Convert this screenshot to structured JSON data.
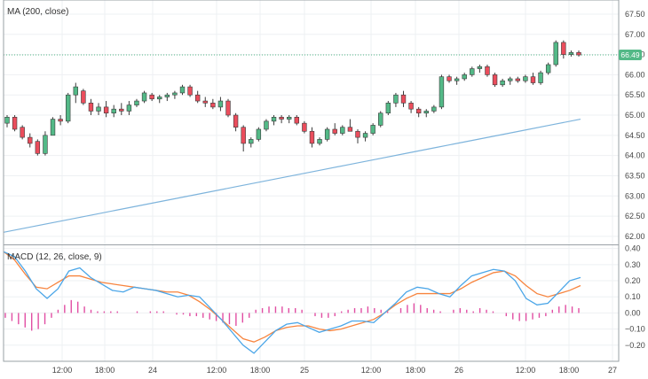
{
  "chart_data": [
    {
      "type": "candlestick",
      "indicator_label": "MA (200, close)",
      "last_price_label": "66.49",
      "ylim": [
        61.8,
        67.85
      ],
      "y_ticks": [
        "62.00",
        "62.50",
        "63.00",
        "63.50",
        "64.00",
        "64.50",
        "65.00",
        "65.50",
        "66.00",
        "66.50",
        "67.00",
        "67.50"
      ],
      "y_tick_values": [
        62.0,
        62.5,
        63.0,
        63.5,
        64.0,
        64.5,
        65.0,
        65.5,
        66.0,
        66.5,
        67.0,
        67.5
      ],
      "grid": true,
      "ohlc": [
        [
          64.8,
          65.0,
          64.7,
          64.95
        ],
        [
          64.95,
          65.0,
          64.6,
          64.65
        ],
        [
          64.7,
          64.75,
          64.4,
          64.45
        ],
        [
          64.45,
          64.55,
          64.2,
          64.3
        ],
        [
          64.35,
          64.4,
          64.0,
          64.05
        ],
        [
          64.05,
          64.6,
          64.0,
          64.5
        ],
        [
          64.5,
          64.95,
          64.5,
          64.9
        ],
        [
          64.9,
          65.0,
          64.75,
          64.85
        ],
        [
          64.85,
          65.55,
          64.8,
          65.5
        ],
        [
          65.5,
          65.8,
          65.3,
          65.7
        ],
        [
          65.6,
          65.65,
          65.25,
          65.3
        ],
        [
          65.3,
          65.4,
          65.0,
          65.1
        ],
        [
          65.1,
          65.3,
          65.0,
          65.2
        ],
        [
          65.2,
          65.35,
          64.95,
          65.05
        ],
        [
          65.05,
          65.25,
          64.95,
          65.15
        ],
        [
          65.15,
          65.3,
          65.0,
          65.1
        ],
        [
          65.1,
          65.35,
          65.0,
          65.25
        ],
        [
          65.25,
          65.4,
          65.2,
          65.35
        ],
        [
          65.35,
          65.6,
          65.3,
          65.55
        ],
        [
          65.5,
          65.55,
          65.35,
          65.4
        ],
        [
          65.4,
          65.5,
          65.3,
          65.45
        ],
        [
          65.45,
          65.55,
          65.35,
          65.5
        ],
        [
          65.5,
          65.6,
          65.4,
          65.55
        ],
        [
          65.55,
          65.75,
          65.5,
          65.7
        ],
        [
          65.7,
          65.75,
          65.45,
          65.5
        ],
        [
          65.5,
          65.6,
          65.3,
          65.35
        ],
        [
          65.35,
          65.45,
          65.2,
          65.3
        ],
        [
          65.3,
          65.4,
          65.15,
          65.2
        ],
        [
          65.2,
          65.45,
          65.1,
          65.35
        ],
        [
          65.35,
          65.4,
          64.95,
          65.0
        ],
        [
          65.0,
          65.05,
          64.6,
          64.7
        ],
        [
          64.7,
          64.75,
          64.1,
          64.3
        ],
        [
          64.3,
          64.45,
          64.2,
          64.4
        ],
        [
          64.4,
          64.7,
          64.35,
          64.65
        ],
        [
          64.65,
          64.9,
          64.6,
          64.85
        ],
        [
          64.85,
          65.0,
          64.75,
          64.95
        ],
        [
          64.95,
          65.0,
          64.8,
          64.9
        ],
        [
          64.9,
          65.0,
          64.8,
          64.95
        ],
        [
          64.95,
          65.0,
          64.75,
          64.8
        ],
        [
          64.8,
          64.85,
          64.55,
          64.6
        ],
        [
          64.6,
          64.7,
          64.2,
          64.3
        ],
        [
          64.3,
          64.45,
          64.25,
          64.4
        ],
        [
          64.4,
          64.7,
          64.35,
          64.65
        ],
        [
          64.65,
          64.8,
          64.5,
          64.55
        ],
        [
          64.55,
          64.75,
          64.5,
          64.7
        ],
        [
          64.7,
          64.9,
          64.65,
          64.6
        ],
        [
          64.6,
          64.65,
          64.3,
          64.45
        ],
        [
          64.45,
          64.6,
          64.35,
          64.55
        ],
        [
          64.55,
          64.8,
          64.5,
          64.75
        ],
        [
          64.75,
          65.1,
          64.7,
          65.05
        ],
        [
          65.05,
          65.35,
          65.0,
          65.3
        ],
        [
          65.3,
          65.55,
          65.2,
          65.5
        ],
        [
          65.5,
          65.6,
          65.2,
          65.3
        ],
        [
          65.3,
          65.35,
          65.05,
          65.15
        ],
        [
          65.15,
          65.2,
          64.95,
          65.05
        ],
        [
          65.05,
          65.15,
          64.95,
          65.1
        ],
        [
          65.1,
          65.25,
          65.05,
          65.2
        ],
        [
          65.2,
          66.0,
          65.15,
          65.95
        ],
        [
          65.95,
          66.0,
          65.8,
          65.85
        ],
        [
          65.85,
          65.95,
          65.75,
          65.9
        ],
        [
          65.9,
          66.05,
          65.85,
          66.0
        ],
        [
          66.0,
          66.2,
          65.95,
          66.15
        ],
        [
          66.15,
          66.25,
          66.05,
          66.2
        ],
        [
          66.2,
          66.25,
          65.95,
          66.0
        ],
        [
          66.0,
          66.05,
          65.7,
          65.75
        ],
        [
          65.75,
          65.9,
          65.7,
          65.85
        ],
        [
          65.85,
          65.95,
          65.75,
          65.9
        ],
        [
          65.9,
          65.95,
          65.8,
          65.85
        ],
        [
          65.85,
          66.0,
          65.8,
          65.95
        ],
        [
          65.95,
          66.05,
          65.75,
          65.8
        ],
        [
          65.8,
          66.1,
          65.75,
          66.05
        ],
        [
          66.05,
          66.3,
          66.0,
          66.25
        ],
        [
          66.25,
          66.85,
          66.2,
          66.8
        ],
        [
          66.8,
          66.85,
          66.4,
          66.5
        ],
        [
          66.5,
          66.6,
          66.45,
          66.55
        ],
        [
          66.55,
          66.6,
          66.45,
          66.49
        ]
      ],
      "ma200": [
        62.1,
        62.24,
        62.38,
        62.52,
        62.66,
        62.8,
        62.94,
        63.08,
        63.22,
        63.36,
        63.5,
        63.64,
        63.78,
        63.92,
        64.06,
        64.2,
        64.34,
        64.48,
        64.62,
        64.76,
        64.9
      ],
      "colors": {
        "up": "#53b987",
        "down": "#eb4d5c",
        "ma": "#7eb4dc",
        "last_price_line": "#53b987"
      }
    },
    {
      "type": "macd",
      "indicator_label": "MACD (12, 26, close, 9)",
      "ylim": [
        -0.3,
        0.42
      ],
      "y_ticks": [
        "0.40",
        "0.30",
        "0.20",
        "0.10",
        "0.00",
        "−0.10",
        "−0.20"
      ],
      "y_tick_values": [
        0.4,
        0.3,
        0.2,
        0.1,
        0.0,
        -0.1,
        -0.2
      ],
      "macd": [
        0.38,
        0.35,
        0.26,
        0.15,
        0.09,
        0.15,
        0.26,
        0.28,
        0.22,
        0.18,
        0.14,
        0.13,
        0.16,
        0.15,
        0.14,
        0.12,
        0.1,
        0.11,
        0.1,
        0.03,
        -0.04,
        -0.12,
        -0.2,
        -0.25,
        -0.18,
        -0.11,
        -0.07,
        -0.06,
        -0.09,
        -0.12,
        -0.1,
        -0.08,
        -0.05,
        -0.05,
        -0.06,
        0.0,
        0.06,
        0.13,
        0.16,
        0.15,
        0.12,
        0.1,
        0.17,
        0.23,
        0.25,
        0.27,
        0.26,
        0.2,
        0.09,
        0.05,
        0.06,
        0.13,
        0.2,
        0.22
      ],
      "signal": [
        0.38,
        0.33,
        0.24,
        0.16,
        0.15,
        0.19,
        0.23,
        0.23,
        0.21,
        0.19,
        0.18,
        0.17,
        0.16,
        0.15,
        0.14,
        0.13,
        0.13,
        0.11,
        0.07,
        0.02,
        -0.04,
        -0.1,
        -0.16,
        -0.18,
        -0.15,
        -0.11,
        -0.09,
        -0.08,
        -0.08,
        -0.1,
        -0.11,
        -0.1,
        -0.08,
        -0.06,
        -0.04,
        0.0,
        0.05,
        0.09,
        0.12,
        0.12,
        0.12,
        0.12,
        0.15,
        0.19,
        0.22,
        0.25,
        0.26,
        0.23,
        0.17,
        0.12,
        0.1,
        0.12,
        0.14,
        0.17
      ],
      "histogram": [
        -0.03,
        -0.05,
        -0.07,
        -0.09,
        -0.11,
        -0.1,
        -0.07,
        -0.03,
        0.02,
        0.05,
        0.08,
        0.07,
        0.04,
        0.02,
        0.01,
        0.01,
        0.01,
        0.01,
        0.0,
        0.0,
        0.01,
        0.0,
        0.01,
        0.01,
        0.01,
        0.0,
        -0.01,
        -0.01,
        -0.02,
        -0.02,
        -0.03,
        -0.04,
        -0.05,
        -0.06,
        -0.07,
        -0.08,
        -0.06,
        -0.03,
        0.02,
        0.03,
        0.04,
        0.04,
        0.04,
        0.03,
        0.03,
        0.02,
        0.0,
        -0.02,
        -0.03,
        -0.03,
        -0.02,
        0.01,
        0.02,
        0.03,
        0.03,
        0.04,
        0.03,
        0.02,
        0.01,
        0.0,
        0.03,
        0.05,
        0.06,
        0.05,
        0.03,
        0.02,
        0.01,
        0.0,
        0.02,
        0.03,
        0.02,
        0.01,
        0.03,
        0.02,
        0.01,
        0.0,
        -0.02,
        -0.04,
        -0.05,
        -0.05,
        -0.04,
        -0.03,
        -0.02,
        0.02,
        0.04,
        0.05,
        0.04,
        0.03
      ],
      "colors": {
        "macd": "#4ba6e8",
        "signal": "#f7843e",
        "histogram": "#e14ea3"
      }
    }
  ],
  "x_axis": {
    "labels": [
      "12:00",
      "18:00",
      "24",
      "12:00",
      "18:00",
      "25",
      "12:00",
      "18:00",
      "26",
      "12:00",
      "18:00",
      "27"
    ]
  }
}
